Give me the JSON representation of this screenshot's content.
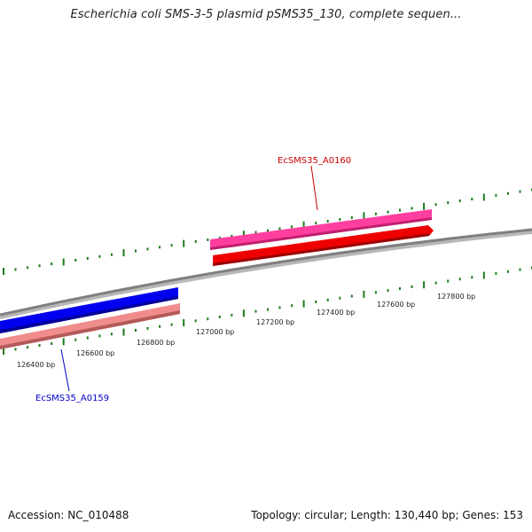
{
  "title": "Escherichia coli SMS-3-5 plasmid pSMS35_130, complete sequen...",
  "footer": {
    "accession": "Accession: NC_010488",
    "summary": "Topology: circular; Length: 130,440 bp; Genes: 153"
  },
  "colors": {
    "backbone": "#8c8c8c",
    "tick": "#1a7a1a",
    "gene_a0160_forward": "#ff3399",
    "gene_a0160_forward_2": "#ee0000",
    "gene_a0159_reverse": "#0000ee",
    "gene_a0159_reverse_2": "#ee8888",
    "label_a0160": "#cc0000",
    "label_a0159": "#0000cc"
  },
  "ruler": {
    "tick_labels": [
      "126400 bp",
      "126600 bp",
      "126800 bp",
      "127000 bp",
      "127200 bp",
      "127400 bp",
      "127600 bp",
      "127800 bp"
    ]
  },
  "genes": [
    {
      "label": "EcSMS35_A0160",
      "strand": "+"
    },
    {
      "label": "EcSMS35_A0159",
      "strand": "-"
    }
  ]
}
